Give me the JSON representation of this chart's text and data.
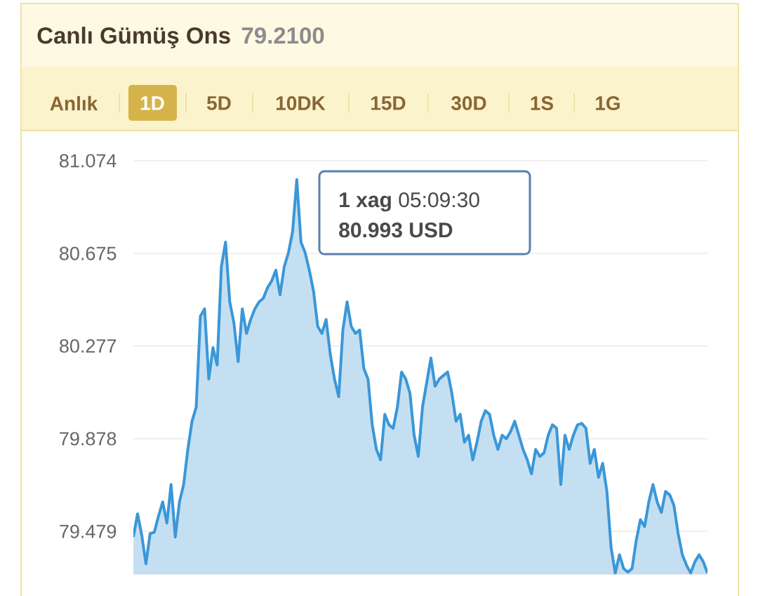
{
  "chart_data": {
    "type": "area",
    "title": "Canlı Gümüş Ons",
    "subtitle": "79.2100",
    "annotations": [
      "Anlık",
      "1D",
      "5D",
      "10DK",
      "15D",
      "30D",
      "1S",
      "1G",
      "**1 xag** 05:09:30",
      "80.993 USD"
    ],
    "categories": [
      null,
      null,
      null,
      null,
      null,
      null,
      null,
      null,
      null,
      null,
      null,
      null,
      null,
      null,
      null,
      null,
      null,
      null,
      null,
      null,
      null,
      null,
      null,
      null,
      null,
      null,
      null,
      null,
      null,
      null,
      null,
      null,
      null,
      null,
      null,
      null,
      null,
      null,
      null,
      null,
      null,
      null,
      null,
      null,
      null,
      null,
      null,
      null,
      null,
      null,
      null,
      null,
      null,
      null,
      null,
      null,
      null,
      null,
      null,
      null,
      null,
      null,
      null,
      null,
      null,
      null,
      null,
      null,
      null,
      null,
      null,
      null,
      null,
      null,
      null,
      null,
      null,
      null,
      null,
      null,
      null,
      null,
      null,
      null,
      null,
      null,
      null,
      null,
      null,
      null,
      null,
      null,
      null,
      null,
      null,
      null,
      null,
      null,
      null,
      null,
      null,
      null,
      null,
      null,
      null,
      null,
      null,
      null,
      null,
      null,
      null,
      null,
      null,
      null,
      null,
      null,
      null,
      null,
      null,
      null,
      null,
      null,
      null,
      null,
      null,
      null,
      null,
      null,
      null,
      null,
      null,
      null,
      null,
      null,
      null,
      null,
      null,
      null
    ],
    "values": [
      79.455,
      79.555,
      79.464,
      79.34,
      79.47,
      79.476,
      79.545,
      79.606,
      79.515,
      79.681,
      79.455,
      79.606,
      79.681,
      79.832,
      79.953,
      80.014,
      80.406,
      80.437,
      80.135,
      80.27,
      80.195,
      80.618,
      80.724,
      80.467,
      80.376,
      80.21,
      80.437,
      80.331,
      80.391,
      80.437,
      80.467,
      80.482,
      80.527,
      80.557,
      80.603,
      80.497,
      80.618,
      80.678,
      80.769,
      80.993,
      80.724,
      80.678,
      80.603,
      80.512,
      80.361,
      80.331,
      80.391,
      80.24,
      80.135,
      80.059,
      80.346,
      80.467,
      80.361,
      80.331,
      80.346,
      80.18,
      80.135,
      79.938,
      79.832,
      79.787,
      79.983,
      79.938,
      79.923,
      80.014,
      80.165,
      80.135,
      80.074,
      79.893,
      79.802,
      80.014,
      80.119,
      80.225,
      80.104,
      80.135,
      80.15,
      80.165,
      80.074,
      79.953,
      79.983,
      79.863,
      79.893,
      79.787,
      79.863,
      79.953,
      79.999,
      79.983,
      79.893,
      79.832,
      79.893,
      79.878,
      79.908,
      79.953,
      79.893,
      79.832,
      79.787,
      79.727,
      79.832,
      79.802,
      79.817,
      79.893,
      79.938,
      79.923,
      79.681,
      79.893,
      79.832,
      79.893,
      79.938,
      79.944,
      79.923,
      79.772,
      79.832,
      79.712,
      79.772,
      79.651,
      79.41,
      79.3,
      79.379,
      79.319,
      79.304,
      79.319,
      79.44,
      79.53,
      79.5,
      79.606,
      79.681,
      79.606,
      79.561,
      79.651,
      79.636,
      79.591,
      79.47,
      79.379,
      79.334,
      79.3,
      79.349,
      79.379,
      79.349,
      79.3
    ],
    "color": "#3a97d8",
    "ylim": [
      79.295,
      81.074
    ],
    "yticks": [
      {
        "value": 79.295,
        "label": null
      },
      79.479,
      79.878,
      80.277,
      80.675,
      81.074
    ],
    "grid": "y"
  }
}
